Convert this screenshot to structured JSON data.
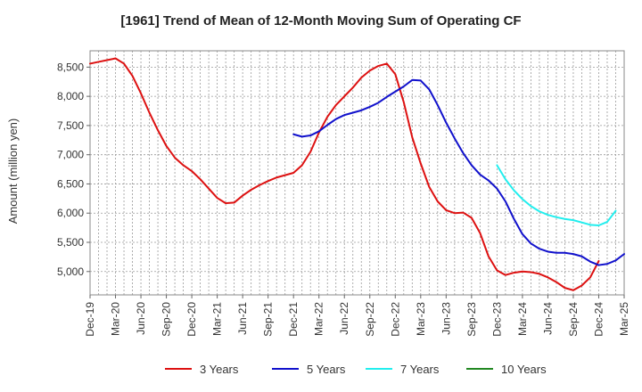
{
  "chart_data": {
    "type": "line",
    "title": "[1961]  Trend of Mean of 12-Month Moving Sum of Operating CF",
    "xlabel": "",
    "ylabel": "Amount (million yen)",
    "ylim": [
      4600,
      8780
    ],
    "yticks": [
      5000,
      5500,
      6000,
      6500,
      7000,
      7500,
      8000,
      8500
    ],
    "ytick_labels": [
      "5,000",
      "5,500",
      "6,000",
      "6,500",
      "7,000",
      "7,500",
      "8,000",
      "8,500"
    ],
    "x_start": "Dec-19",
    "x_months": 63,
    "xtick_labels": [
      "Dec-19",
      "Mar-20",
      "Jun-20",
      "Sep-20",
      "Dec-20",
      "Mar-21",
      "Jun-21",
      "Sep-21",
      "Dec-21",
      "Mar-22",
      "Jun-22",
      "Sep-22",
      "Dec-22",
      "Mar-23",
      "Jun-23",
      "Sep-23",
      "Dec-23",
      "Mar-24",
      "Jun-24",
      "Sep-24",
      "Dec-24",
      "Mar-25"
    ],
    "grid": true,
    "legend_position": "bottom",
    "series": [
      {
        "name": "3 Years",
        "color": "#dd1111",
        "start_index": 0,
        "values": [
          8560,
          8590,
          8620,
          8650,
          8560,
          8350,
          8050,
          7720,
          7420,
          7150,
          6950,
          6820,
          6720,
          6580,
          6420,
          6260,
          6170,
          6180,
          6300,
          6400,
          6480,
          6550,
          6610,
          6650,
          6690,
          6820,
          7050,
          7380,
          7650,
          7850,
          8000,
          8150,
          8320,
          8440,
          8520,
          8560,
          8380,
          7900,
          7300,
          6850,
          6450,
          6200,
          6050,
          6000,
          6010,
          5920,
          5660,
          5260,
          5020,
          4940,
          4980,
          5000,
          4990,
          4960,
          4900,
          4820,
          4720,
          4680,
          4760,
          4900,
          5180
        ]
      },
      {
        "name": "5 Years",
        "color": "#1111cc",
        "start_index": 24,
        "values": [
          7350,
          7310,
          7330,
          7400,
          7510,
          7610,
          7680,
          7720,
          7760,
          7820,
          7890,
          7990,
          8080,
          8170,
          8280,
          8270,
          8120,
          7850,
          7550,
          7280,
          7030,
          6820,
          6660,
          6560,
          6420,
          6200,
          5900,
          5640,
          5480,
          5390,
          5340,
          5320,
          5320,
          5300,
          5260,
          5170,
          5110,
          5130,
          5190,
          5300
        ]
      },
      {
        "name": "7 Years",
        "color": "#22eeee",
        "start_index": 48,
        "values": [
          6820,
          6580,
          6390,
          6240,
          6120,
          6030,
          5970,
          5930,
          5900,
          5880,
          5840,
          5800,
          5790,
          5850,
          6040
        ]
      },
      {
        "name": "10 Years",
        "color": "#228822",
        "start_index": 0,
        "values": []
      }
    ]
  }
}
